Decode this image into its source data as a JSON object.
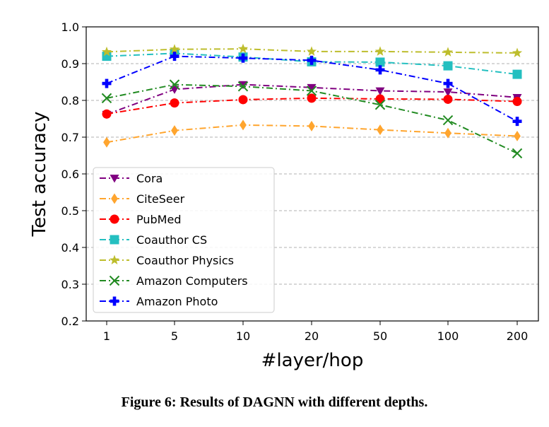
{
  "chart_data": {
    "type": "line",
    "xlabel": "#layer/hop",
    "ylabel": "Test accuracy",
    "categories": [
      "1",
      "5",
      "10",
      "20",
      "50",
      "100",
      "200"
    ],
    "ylim": [
      0.2,
      1.0
    ],
    "yticks": [
      "0.2",
      "0.3",
      "0.4",
      "0.5",
      "0.6",
      "0.7",
      "0.8",
      "0.9",
      "1.0"
    ],
    "grid": "horizontal dashed",
    "legend_position": "lower-left",
    "series": [
      {
        "name": "Cora",
        "color": "#800080",
        "marker": "triangle-down",
        "values": [
          0.762,
          0.83,
          0.843,
          0.835,
          0.826,
          0.823,
          0.808
        ]
      },
      {
        "name": "CiteSeer",
        "color": "#FFA52E",
        "marker": "diamond",
        "values": [
          0.686,
          0.718,
          0.733,
          0.73,
          0.72,
          0.711,
          0.703
        ]
      },
      {
        "name": "PubMed",
        "color": "#FF0000",
        "marker": "circle",
        "values": [
          0.763,
          0.793,
          0.802,
          0.806,
          0.804,
          0.803,
          0.797
        ]
      },
      {
        "name": "Coauthor CS",
        "color": "#24BFC0",
        "marker": "square",
        "values": [
          0.92,
          0.928,
          0.918,
          0.905,
          0.904,
          0.894,
          0.871
        ]
      },
      {
        "name": "Coauthor Physics",
        "color": "#BDBD2C",
        "marker": "star",
        "values": [
          0.932,
          0.939,
          0.94,
          0.933,
          0.933,
          0.931,
          0.929
        ]
      },
      {
        "name": "Amazon Computers",
        "color": "#228B22",
        "marker": "x",
        "values": [
          0.806,
          0.843,
          0.838,
          0.826,
          0.788,
          0.746,
          0.656
        ]
      },
      {
        "name": "Amazon Photo",
        "color": "#0000FF",
        "marker": "plus",
        "values": [
          0.846,
          0.92,
          0.915,
          0.909,
          0.883,
          0.846,
          0.743
        ]
      }
    ]
  },
  "caption": "Figure 6: Results of DAGNN with different depths."
}
